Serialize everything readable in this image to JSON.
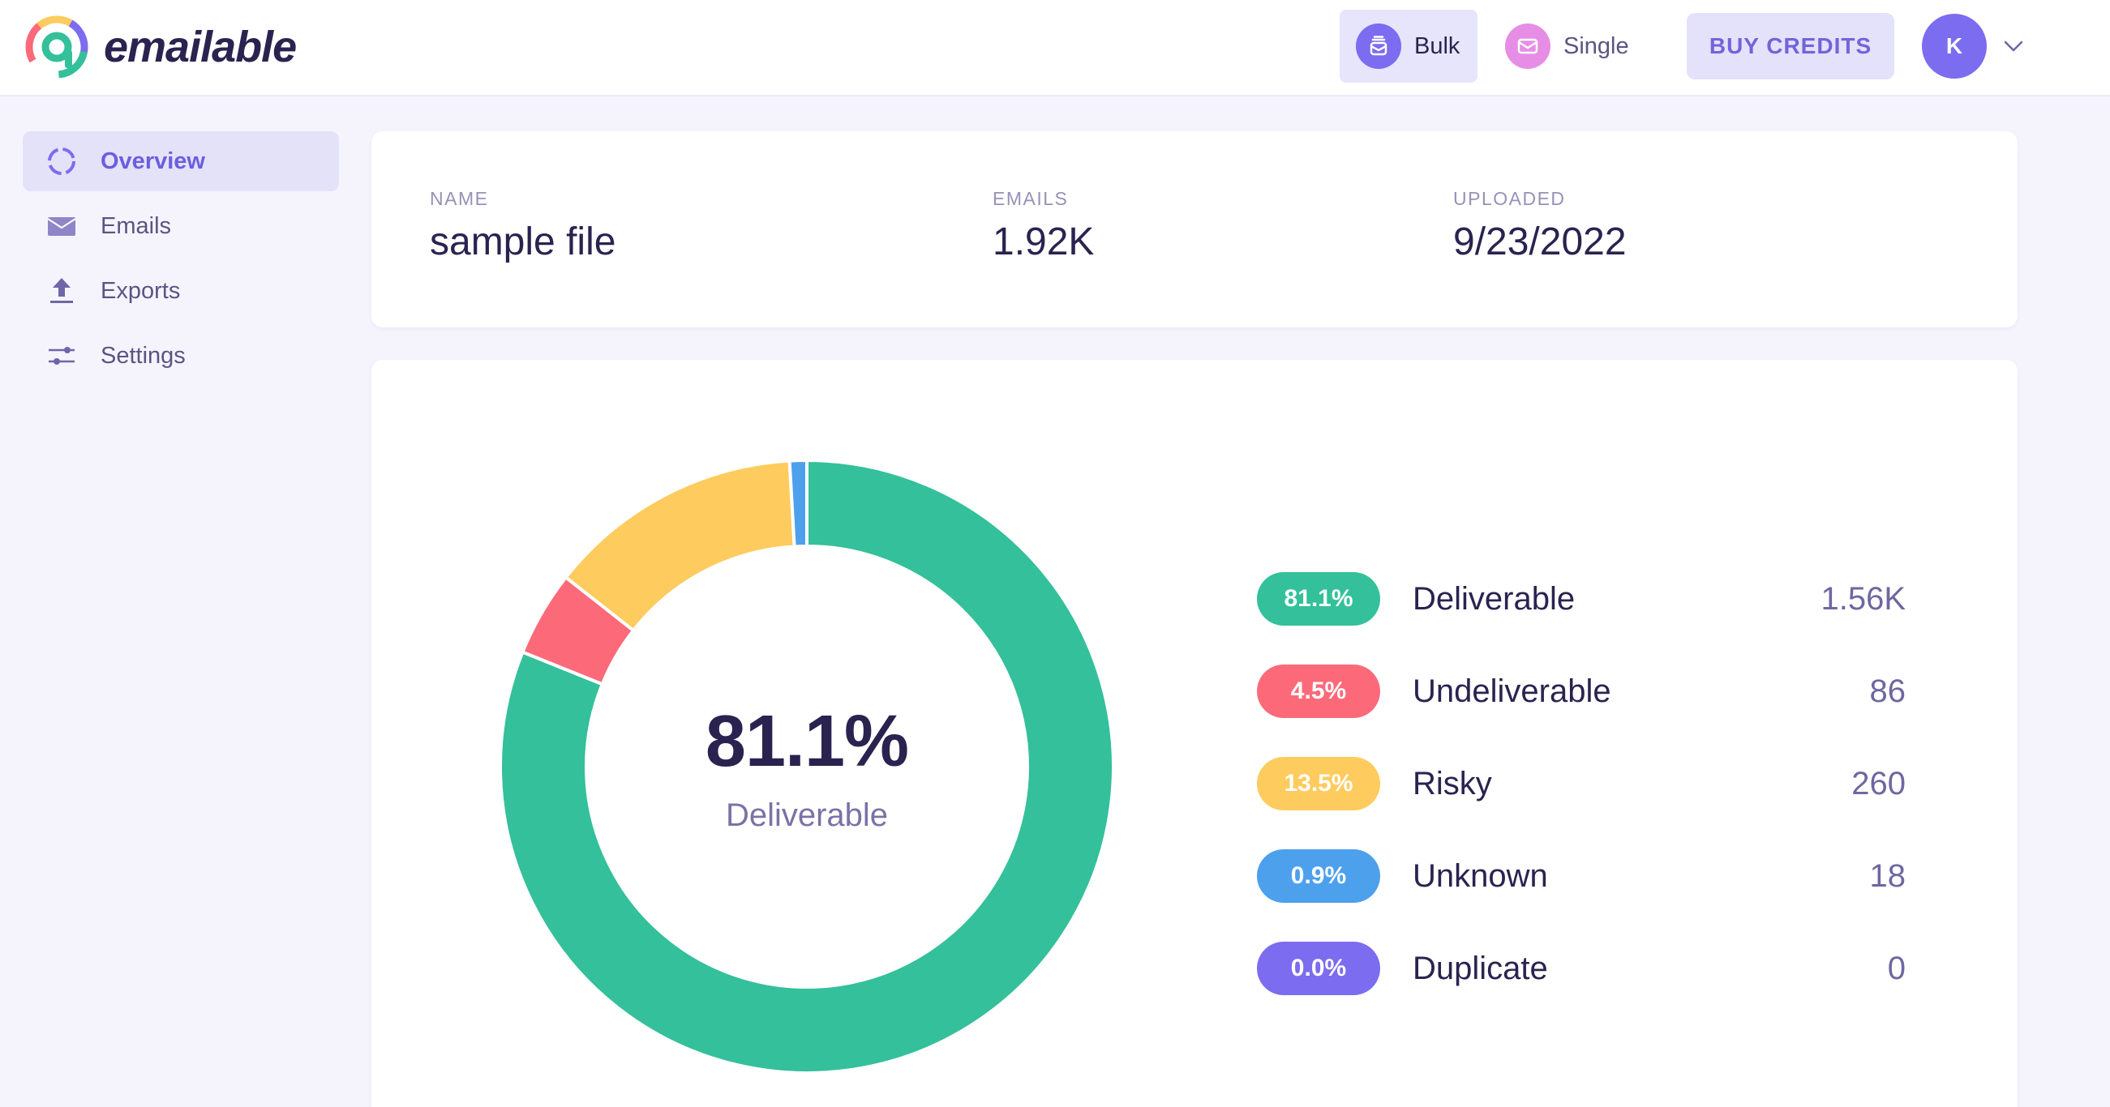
{
  "brand": {
    "name": "emailable"
  },
  "header": {
    "nav": [
      {
        "label": "Bulk",
        "icon": "stack-icon",
        "active": true
      },
      {
        "label": "Single",
        "icon": "envelope-icon",
        "active": false
      }
    ],
    "buy_credits_label": "BUY CREDITS",
    "avatar_initial": "K"
  },
  "sidebar": {
    "items": [
      {
        "label": "Overview",
        "icon": "donut-icon",
        "active": true
      },
      {
        "label": "Emails",
        "icon": "envelope-icon",
        "active": false
      },
      {
        "label": "Exports",
        "icon": "upload-icon",
        "active": false
      },
      {
        "label": "Settings",
        "icon": "sliders-icon",
        "active": false
      }
    ]
  },
  "file_info": {
    "name_label": "NAME",
    "name_value": "sample file",
    "emails_label": "EMAILS",
    "emails_value": "1.92K",
    "uploaded_label": "UPLOADED",
    "uploaded_value": "9/23/2022"
  },
  "summary": {
    "center_percent": "81.1%",
    "center_label": "Deliverable"
  },
  "colors": {
    "accent": "#7b6cf0",
    "deliverable": "#34c09a",
    "undeliverable": "#fc6a7a",
    "risky": "#fecb5e",
    "unknown": "#4da0ec",
    "duplicate": "#7b6cf0"
  },
  "chart_data": {
    "type": "pie",
    "categories": [
      "Deliverable",
      "Undeliverable",
      "Risky",
      "Unknown",
      "Duplicate"
    ],
    "values": [
      81.1,
      4.5,
      13.5,
      0.9,
      0.0
    ],
    "counts": [
      "1.56K",
      "86",
      "260",
      "18",
      "0"
    ],
    "percent_labels": [
      "81.1%",
      "4.5%",
      "13.5%",
      "0.9%",
      "0.0%"
    ],
    "colors": [
      "#34c09a",
      "#fc6a7a",
      "#fecb5e",
      "#4da0ec",
      "#7b6cf0"
    ],
    "title": "",
    "legend_position": "right",
    "donut": true
  }
}
